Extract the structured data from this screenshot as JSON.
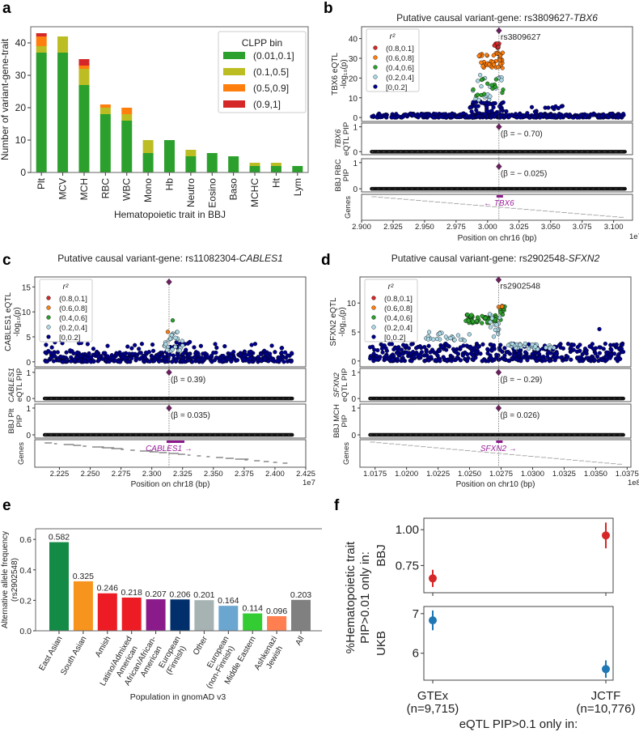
{
  "panel_letters": [
    "a",
    "b",
    "c",
    "d",
    "e",
    "f"
  ],
  "chart_data": [
    {
      "type": "bar",
      "stacked": true,
      "title": "",
      "xlabel": "Hematopoietic trait in BBJ",
      "ylabel": "Number of variant-gene-trait",
      "ylim": [
        0,
        45
      ],
      "yticks": [
        0,
        10,
        20,
        30,
        40
      ],
      "categories": [
        "Plt",
        "MCV",
        "MCH",
        "RBC",
        "WBC",
        "Mono",
        "Hb",
        "Neutro",
        "Eosino",
        "Baso",
        "MCHC",
        "Ht",
        "Lym"
      ],
      "legend": {
        "title": "CLPP bin",
        "placement": "top-right"
      },
      "series": [
        {
          "name": "(0.01,0.1]",
          "color": "#2ca02c",
          "values": [
            37,
            37,
            27,
            18,
            16,
            6,
            10,
            5,
            6,
            5,
            2,
            2,
            2
          ]
        },
        {
          "name": "(0.1,0.5]",
          "color": "#bcbd22",
          "values": [
            2,
            5,
            5,
            2,
            2,
            4,
            0,
            2,
            0,
            0,
            1,
            1,
            0
          ]
        },
        {
          "name": "(0.5,0.9]",
          "color": "#ff7f0e",
          "values": [
            3,
            0,
            1,
            1,
            2,
            0,
            0,
            0,
            0,
            0,
            0,
            0,
            0
          ]
        },
        {
          "name": "(0.9,1]",
          "color": "#d62728",
          "values": [
            1,
            0,
            2,
            0,
            0,
            0,
            0,
            0,
            0,
            0,
            0,
            0,
            0
          ]
        }
      ]
    },
    {
      "type": "scatter",
      "title": "Putative causal variant-gene: rs3809627-",
      "title_gene": "TBX6",
      "ylabel": [
        "TBX6 eQTL",
        "-log₁₀(p)"
      ],
      "ylim": [
        -2,
        46
      ],
      "yticks": [
        0,
        10,
        20,
        30,
        40
      ],
      "xlim": [
        2.9,
        3.115
      ],
      "xticks": [
        "2.900",
        "2.925",
        "2.950",
        "2.975",
        "3.000",
        "3.025",
        "3.050",
        "3.075",
        "3.100"
      ],
      "xlabel": "Position on chr16 (bp)",
      "x_offset": "1e7",
      "lead": {
        "x": 3.009,
        "y": 44,
        "label": "rs3809627"
      },
      "legend": {
        "title": "r²",
        "entries": [
          "(0.8,0.1]",
          "(0.6,0.8]",
          "(0.4,0.6]",
          "(0.2,0.4]",
          "[0,0.2]"
        ],
        "placement": "top-left"
      },
      "r2_colors": [
        "#d62728",
        "#ff7f0e",
        "#2ca02c",
        "#add8e6",
        "#00008b"
      ],
      "clusters": [
        {
          "bin": 4,
          "x": [
            2.908,
            3.109
          ],
          "y": [
            0,
            2
          ],
          "n": 380
        },
        {
          "bin": 4,
          "x": [
            2.985,
            3.015
          ],
          "y": [
            0,
            9
          ],
          "n": 80
        },
        {
          "bin": 4,
          "x": [
            3.03,
            3.06
          ],
          "y": [
            2,
            6
          ],
          "n": 12
        },
        {
          "bin": 3,
          "x": [
            2.988,
            3.012
          ],
          "y": [
            8,
            22
          ],
          "n": 20
        },
        {
          "bin": 2,
          "x": [
            2.988,
            3.013
          ],
          "y": [
            11,
            20
          ],
          "n": 15
        },
        {
          "bin": 1,
          "x": [
            2.993,
            3.012
          ],
          "y": [
            24,
            34
          ],
          "n": 45
        },
        {
          "bin": 0,
          "x": [
            3.005,
            3.01
          ],
          "y": [
            35,
            38
          ],
          "n": 12
        }
      ],
      "pip_panels": [
        {
          "ylabel": [
            "TBX6",
            "eQTL PIP"
          ],
          "lead_pip": 1.0,
          "beta": "(β = − 0.70)"
        },
        {
          "ylabel": [
            "BBJ RBC",
            "PIP"
          ],
          "lead_pip": 0.85,
          "beta": "(β = − 0.025)"
        }
      ],
      "genes_label": "Genes",
      "gene": "← TBX6",
      "gene_track": "diagonal"
    },
    {
      "type": "scatter",
      "title": "Putative causal variant-gene: rs11082304-",
      "title_gene": "CABLES1",
      "ylabel": [
        "CABLES1 eQTL",
        "-log₁₀(p)"
      ],
      "ylim": [
        -1,
        17
      ],
      "yticks": [
        0,
        5,
        10,
        15
      ],
      "xlim": [
        2.205,
        2.425
      ],
      "xticks": [
        "2.225",
        "2.250",
        "2.275",
        "2.300",
        "2.325",
        "2.350",
        "2.375",
        "2.400",
        "2.425"
      ],
      "xlabel": "Position on chr18 (bp)",
      "x_offset": "1e7",
      "lead": {
        "x": 2.314,
        "y": 16,
        "label": ""
      },
      "legend": {
        "title": "r²",
        "entries": [
          "(0.8,0.1]",
          "(0.6,0.8]",
          "(0.4,0.6]",
          "(0.2,0.4]",
          "[0,0.2]"
        ],
        "placement": "top-left"
      },
      "r2_colors": [
        "#d62728",
        "#ff7f0e",
        "#2ca02c",
        "#add8e6",
        "#00008b"
      ],
      "clusters": [
        {
          "bin": 4,
          "x": [
            2.213,
            2.414
          ],
          "y": [
            0,
            2
          ],
          "n": 450
        },
        {
          "bin": 4,
          "x": [
            2.213,
            2.414
          ],
          "y": [
            2,
            4
          ],
          "n": 45
        },
        {
          "bin": 3,
          "x": [
            2.31,
            2.325
          ],
          "y": [
            2,
            6
          ],
          "n": 25
        },
        {
          "bin": 1,
          "x": [
            2.313,
            2.313
          ],
          "y": [
            6,
            6
          ],
          "n": 1
        },
        {
          "bin": 2,
          "x": [
            2.317,
            2.317
          ],
          "y": [
            8.3,
            8.3
          ],
          "n": 1
        }
      ],
      "pip_panels": [
        {
          "ylabel": [
            "CABLES1",
            "eQTL PIP"
          ],
          "lead_pip": 1.0,
          "beta": "(β = 0.39)"
        },
        {
          "ylabel": [
            "BBJ Plt",
            "PIP"
          ],
          "lead_pip": 1.0,
          "beta": "(β = 0.035)"
        }
      ],
      "genes_label": "Genes",
      "gene": "CABLES1 →",
      "gene_track": "segments"
    },
    {
      "type": "scatter",
      "title": "Putative causal variant-gene: rs2902548-",
      "title_gene": "SFXN2",
      "ylabel": [
        "SFXN2 eQTL",
        "-log₁₀(p)"
      ],
      "ylim": [
        -1,
        14.5
      ],
      "yticks": [
        0,
        5,
        10
      ],
      "xlim": [
        1.0163,
        1.0378
      ],
      "xticks": [
        "1.0175",
        "1.0200",
        "1.0225",
        "1.0250",
        "1.0275",
        "1.0300",
        "1.0325",
        "1.0350",
        "1.0375"
      ],
      "xlabel": "Position on chr10 (bp)",
      "x_offset": "1e8",
      "lead": {
        "x": 1.0273,
        "y": 14,
        "label": "rs2902548"
      },
      "legend": {
        "title": "r²",
        "entries": [
          "(0.8,0.1]",
          "(0.6,0.8]",
          "(0.4,0.6]",
          "(0.2,0.4]",
          "[0,0.2]"
        ],
        "placement": "top-left"
      },
      "r2_colors": [
        "#d62728",
        "#ff7f0e",
        "#2ca02c",
        "#add8e6",
        "#00008b"
      ],
      "clusters": [
        {
          "bin": 4,
          "x": [
            1.0171,
            1.0372
          ],
          "y": [
            0,
            3
          ],
          "n": 460
        },
        {
          "bin": 3,
          "x": [
            1.0215,
            1.025
          ],
          "y": [
            3.5,
            5
          ],
          "n": 25
        },
        {
          "bin": 2,
          "x": [
            1.0247,
            1.0275
          ],
          "y": [
            6.5,
            8
          ],
          "n": 50
        },
        {
          "bin": 3,
          "x": [
            1.0265,
            1.0275
          ],
          "y": [
            4,
            8.5
          ],
          "n": 15
        },
        {
          "bin": 2,
          "x": [
            1.0273,
            1.0278
          ],
          "y": [
            8,
            9.5
          ],
          "n": 10
        },
        {
          "bin": 1,
          "x": [
            1.0273,
            1.0277
          ],
          "y": [
            9,
            9.5
          ],
          "n": 4
        },
        {
          "bin": 3,
          "x": [
            1.028,
            1.032
          ],
          "y": [
            2,
            3
          ],
          "n": 30
        },
        {
          "bin": 4,
          "x": [
            1.0353,
            1.0353
          ],
          "y": [
            5.5,
            5.5
          ],
          "n": 1
        }
      ],
      "pip_panels": [
        {
          "ylabel": [
            "SFXN2",
            "eQTL PIP"
          ],
          "lead_pip": 1.0,
          "beta": "(β = − 0.29)"
        },
        {
          "ylabel": [
            "BBJ MCH",
            "PIP"
          ],
          "lead_pip": 1.0,
          "beta": "(β = 0.026)"
        }
      ],
      "genes_label": "Genes",
      "gene": "SFXN2 →",
      "gene_track": "diagonal"
    },
    {
      "type": "bar",
      "xlabel": "Population in gnomAD v3",
      "ylabel": [
        "Alternative allele frequency",
        "(rs2902548)"
      ],
      "ylim": [
        0,
        0.67
      ],
      "yticks": [
        "0.0",
        "0.2",
        "0.4",
        "0.6"
      ],
      "categories": [
        [
          "East Asian"
        ],
        [
          "South Asian"
        ],
        [
          "Amish"
        ],
        [
          "Latino/Admixed",
          "American"
        ],
        [
          "African/African-",
          "American"
        ],
        [
          "European",
          "(Finnish)"
        ],
        [
          "Other"
        ],
        [
          "European",
          "(non-Finnish)"
        ],
        [
          "Middle Eastern"
        ],
        [
          "Ashkenazi",
          "Jewish"
        ],
        [
          "All"
        ]
      ],
      "values": [
        0.582,
        0.325,
        0.246,
        0.218,
        0.207,
        0.206,
        0.201,
        0.164,
        0.114,
        0.096,
        0.203
      ],
      "value_labels": [
        "0.582",
        "0.325",
        "0.246",
        "0.218",
        "0.207",
        "0.206",
        "0.201",
        "0.164",
        "0.114",
        "0.096",
        "0.203"
      ],
      "colors": [
        "#138a45",
        "#f7941d",
        "#ed1c24",
        "#ed1c24",
        "#8b1a8b",
        "#012f6b",
        "#a7b2b2",
        "#6aa6d0",
        "#33cc33",
        "#ff7f50",
        "#808080"
      ]
    },
    {
      "type": "scatter",
      "errorbars": true,
      "xlabel": "eQTL PIP>0.1 only in:",
      "ylabel": [
        "%Hematopoietic trait",
        "PIP>0.01 only in:"
      ],
      "categories": [
        [
          "GTEx",
          "(n=9,715)"
        ],
        [
          "JCTF",
          "(n=10,776)"
        ]
      ],
      "panels": [
        {
          "name": "BBJ",
          "color": "#d62728",
          "yticks": [
            "0.75",
            "1.00"
          ],
          "ytick_values": [
            0.75,
            1.0
          ],
          "ylim": [
            0.56,
            1.08
          ],
          "values": [
            0.66,
            0.96
          ],
          "ci_low": [
            0.6,
            0.87
          ],
          "ci_high": [
            0.72,
            1.05
          ]
        },
        {
          "name": "UKB",
          "color": "#1f77b4",
          "yticks": [
            "6",
            "7"
          ],
          "ytick_values": [
            6,
            7
          ],
          "ylim": [
            5.32,
            7.18
          ],
          "values": [
            6.83,
            5.6
          ],
          "ci_low": [
            6.58,
            5.38
          ],
          "ci_high": [
            7.08,
            5.82
          ]
        }
      ]
    }
  ]
}
